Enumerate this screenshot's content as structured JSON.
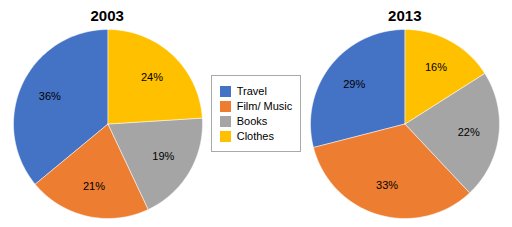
{
  "chart_data": [
    {
      "type": "pie",
      "title": "2003",
      "categories": [
        "Travel",
        "Film/ Music",
        "Books",
        "Clothes"
      ],
      "values": [
        36,
        21,
        19,
        24
      ],
      "value_labels": [
        "36%",
        "21%",
        "19%",
        "24%"
      ],
      "colors": [
        "#4472C4",
        "#ED7D31",
        "#A5A5A5",
        "#FFC000"
      ],
      "data_labels": true,
      "legend": "center"
    },
    {
      "type": "pie",
      "title": "2013",
      "categories": [
        "Travel",
        "Film/ Music",
        "Books",
        "Clothes"
      ],
      "values": [
        29,
        33,
        22,
        16
      ],
      "value_labels": [
        "29%",
        "33%",
        "22%",
        "16%"
      ],
      "colors": [
        "#4472C4",
        "#ED7D31",
        "#A5A5A5",
        "#FFC000"
      ],
      "data_labels": true
    }
  ]
}
